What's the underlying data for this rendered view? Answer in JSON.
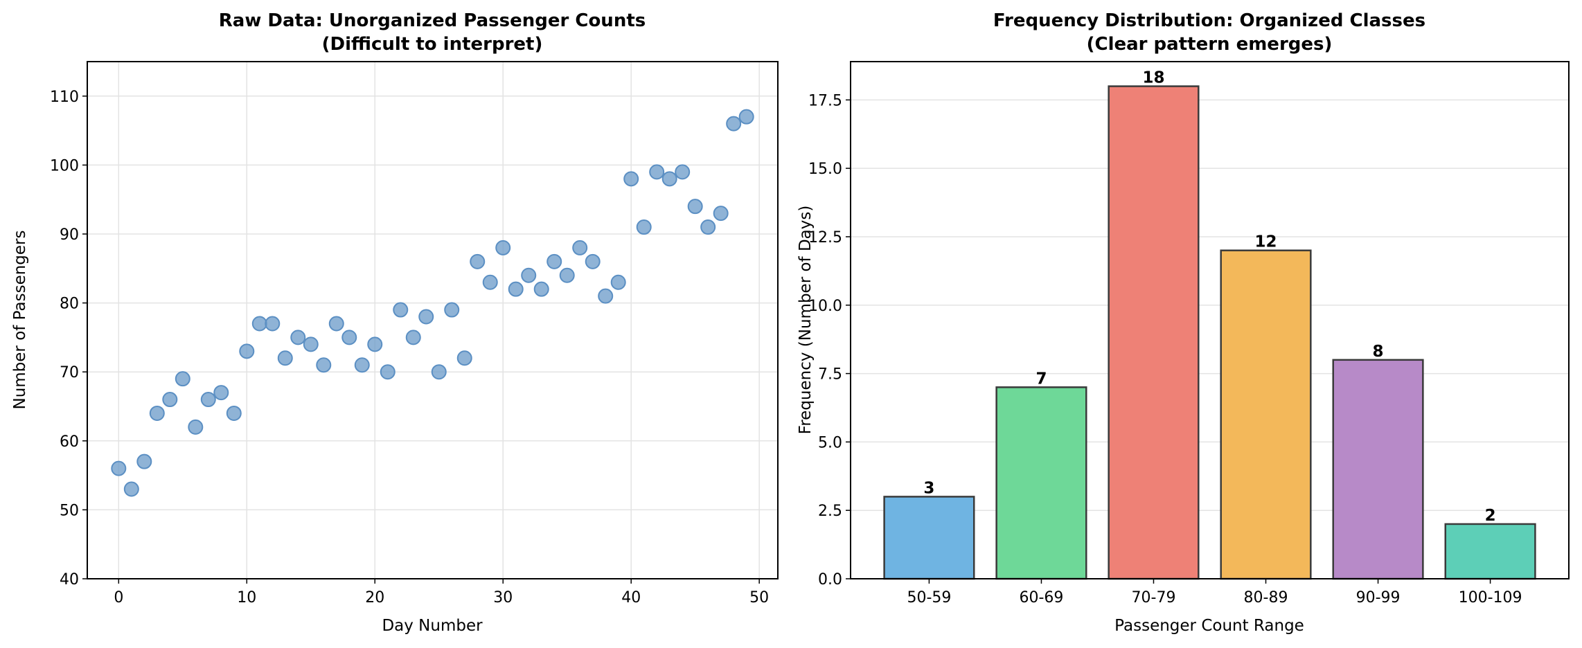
{
  "chart_data": [
    {
      "type": "scatter",
      "title": "Raw Data: Unorganized Passenger Counts",
      "subtitle": "(Difficult to interpret)",
      "xlabel": "Day Number",
      "ylabel": "Number of Passengers",
      "xlim": [
        -2.45,
        51.45
      ],
      "ylim": [
        40,
        115
      ],
      "xticks": [
        0,
        10,
        20,
        30,
        40,
        50
      ],
      "yticks": [
        40,
        50,
        60,
        70,
        80,
        90,
        100,
        110
      ],
      "grid": true,
      "color": "#6a9ac8",
      "x": [
        0,
        1,
        2,
        3,
        4,
        5,
        6,
        7,
        8,
        9,
        10,
        11,
        12,
        13,
        14,
        15,
        16,
        17,
        18,
        19,
        20,
        21,
        22,
        23,
        24,
        25,
        26,
        27,
        28,
        29,
        30,
        31,
        32,
        33,
        34,
        35,
        36,
        37,
        38,
        39,
        40,
        41,
        42,
        43,
        44,
        45,
        46,
        47,
        48,
        49
      ],
      "y": [
        56,
        53,
        57,
        64,
        66,
        69,
        62,
        66,
        67,
        64,
        73,
        77,
        77,
        72,
        75,
        74,
        71,
        77,
        75,
        71,
        74,
        70,
        79,
        75,
        78,
        70,
        79,
        72,
        86,
        83,
        88,
        82,
        84,
        82,
        86,
        84,
        88,
        86,
        81,
        83,
        98,
        91,
        99,
        98,
        99,
        94,
        91,
        93,
        106,
        107
      ]
    },
    {
      "type": "bar",
      "title": "Frequency Distribution: Organized Classes",
      "subtitle": "(Clear pattern emerges)",
      "xlabel": "Passenger Count Range",
      "ylabel": "Frequency (Number of Days)",
      "categories": [
        "50-59",
        "60-69",
        "70-79",
        "80-89",
        "90-99",
        "100-109"
      ],
      "values": [
        3,
        7,
        18,
        12,
        8,
        2
      ],
      "value_labels": [
        "3",
        "7",
        "18",
        "12",
        "8",
        "2"
      ],
      "colors": [
        "#6fb4e2",
        "#6ed898",
        "#ee8176",
        "#f3b85a",
        "#b78ac8",
        "#5dcfb7"
      ],
      "ylim": [
        0,
        18.9
      ],
      "yticks": [
        "0.0",
        "2.5",
        "5.0",
        "7.5",
        "10.0",
        "12.5",
        "15.0",
        "17.5"
      ],
      "grid": true
    }
  ]
}
